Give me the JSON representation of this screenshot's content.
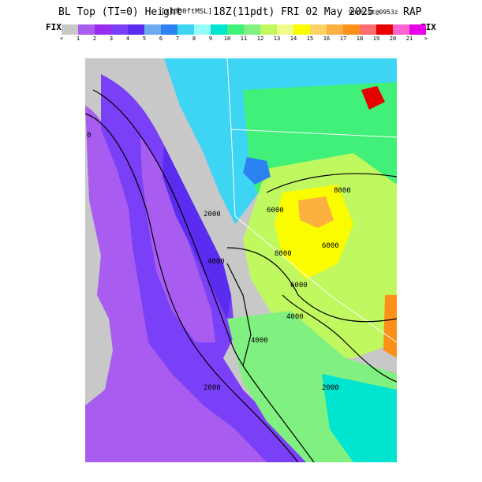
{
  "header": {
    "title_main": "BL Top (TI=0) Height",
    "title_units": "[x1000ftMSL]",
    "title_time": "18Z(11pdt) FRI 02 May 2025",
    "title_fcst": "9hrFcst@0953z",
    "title_model": "RAP"
  },
  "colorbar": {
    "fix_left": "FIX",
    "fix_right": "FIX",
    "colors": [
      "#c8c8c8",
      "#a95cf0",
      "#9a2cf0",
      "#7a40f8",
      "#5a2cf0",
      "#6eaaf0",
      "#2c82f0",
      "#3ed4f4",
      "#98fcfc",
      "#00e4d0",
      "#40f078",
      "#80f080",
      "#c0f860",
      "#f0fc8a",
      "#fcfc00",
      "#fcd464",
      "#fcb040",
      "#fc9018",
      "#fc6c6c",
      "#e80000",
      "#fc64d0",
      "#e800e8"
    ],
    "tick_labels": [
      "<",
      "1",
      "2",
      "3",
      "4",
      "5",
      "6",
      "7",
      "8",
      "9",
      "10",
      "11",
      "12",
      "13",
      "14",
      "15",
      "16",
      "17",
      "18",
      "19",
      "20",
      "21",
      ">"
    ]
  },
  "map": {
    "contour_labels": [
      "0",
      "2000",
      "4000",
      "6000",
      "8000",
      "8000",
      "6000",
      "4000",
      "2000",
      "2000",
      "4000",
      "6000"
    ],
    "land_color": "#c8c8c8",
    "ocean_color": "#ffffff"
  }
}
